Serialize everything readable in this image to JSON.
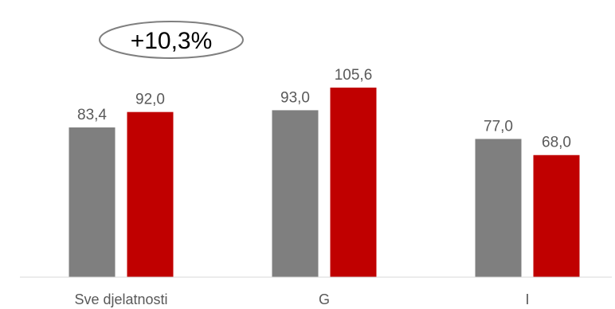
{
  "chart_data": {
    "type": "bar",
    "categories": [
      "Sve djelatnosti",
      "G",
      "I"
    ],
    "series": [
      {
        "values": [
          83.4,
          93.0,
          77.0
        ],
        "labels": [
          "83,4",
          "93,0",
          "77,0"
        ],
        "color": "#7f7f7f"
      },
      {
        "values": [
          92.0,
          105.6,
          68.0
        ],
        "labels": [
          "92,0",
          "105,6",
          "68,0"
        ],
        "color": "#c00000"
      }
    ],
    "ylim": [
      0,
      110
    ],
    "grid": false,
    "legend": "none",
    "annotation": {
      "text": "+10,3%",
      "category": "Sve djelatnosti"
    },
    "colors": {
      "axis": "#d9d9d9",
      "label": "#595959",
      "callout_border": "#7f7f7f"
    }
  }
}
